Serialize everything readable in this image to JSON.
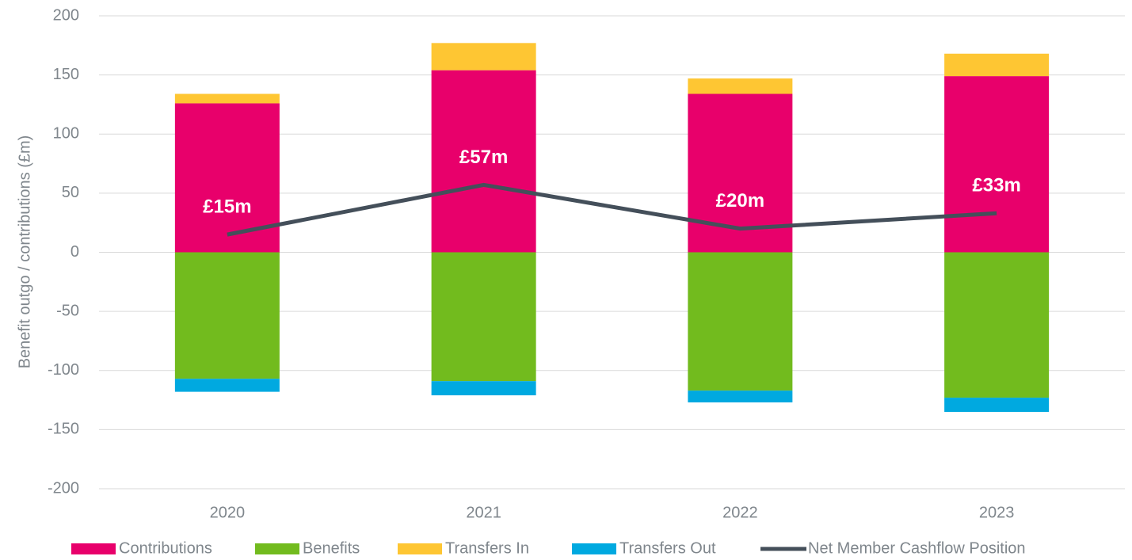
{
  "chart_data": {
    "type": "bar",
    "stacked": true,
    "y_label": "Benefit outgo / contributions (£m)",
    "categories": [
      "2020",
      "2021",
      "2022",
      "2023"
    ],
    "series": [
      {
        "name": "Contributions",
        "color": "#e8006b",
        "values": [
          126,
          154,
          134,
          149
        ]
      },
      {
        "name": "Benefits",
        "color": "#72bb1e",
        "values": [
          -107,
          -109,
          -117,
          -123
        ]
      },
      {
        "name": "Transfers In",
        "color": "#fec633",
        "values": [
          8,
          23,
          13,
          19
        ]
      },
      {
        "name": "Transfers Out",
        "color": "#00a9e0",
        "values": [
          -11,
          -12,
          -10,
          -12
        ]
      },
      {
        "name": "Net Member Cashflow Position",
        "type": "line",
        "color": "#444f5a",
        "values": [
          15,
          57,
          20,
          33
        ],
        "value_labels": [
          "£15m",
          "£57m",
          "£20m",
          "£33m"
        ]
      }
    ],
    "ylim": [
      -200,
      200
    ],
    "yticks": [
      -200,
      -150,
      -100,
      -50,
      0,
      50,
      100,
      150,
      200
    ],
    "grid": true,
    "legend": "bottom"
  }
}
